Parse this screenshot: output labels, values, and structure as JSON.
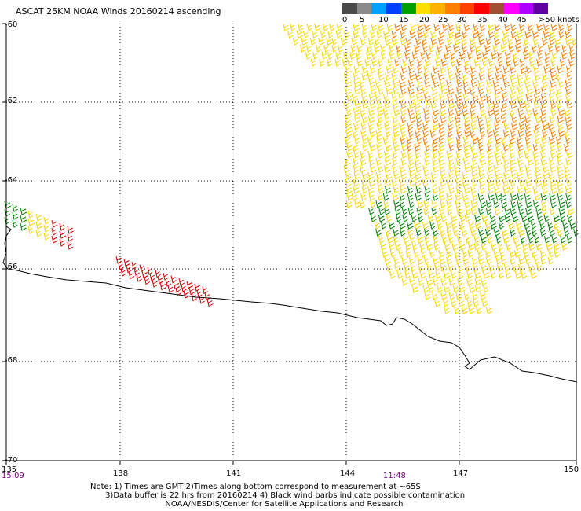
{
  "title": "ASCAT 25KM NOAA Winds 20160214 ascending",
  "scale": {
    "colors": [
      "#4a4a4a",
      "#8a8a8a",
      "#00a0ff",
      "#0040ff",
      "#00a000",
      "#ffe000",
      "#ffb000",
      "#ff8000",
      "#ff4000",
      "#ff0000",
      "#a05030",
      "#ff00ff",
      "#b000ff",
      "#6000a0"
    ],
    "labels": [
      "0",
      "5",
      "10",
      "15",
      "20",
      "25",
      "30",
      "35",
      "40",
      "45",
      ">50 knots"
    ]
  },
  "axes": {
    "lat_labels": [
      "-60",
      "-62",
      "-64",
      "-66",
      "-68",
      "-70"
    ],
    "lon_labels": [
      "135",
      "138",
      "141",
      "144",
      "147",
      "150"
    ]
  },
  "times": [
    "15:09",
    "11:48"
  ],
  "notes": [
    "Note: 1) Times are GMT 2)Times along bottom correspond to measurement at ~65S",
    "      3)Data buffer is 22 hrs from 20160214 4) Black wind barbs indicate possible contamination",
    "                              NOAA/NESDIS/Center for Satellite Applications and Research"
  ],
  "barb_colors": {
    "yellow": "#f5d400",
    "orange": "#f08000",
    "green": "#008000",
    "red": "#d00000"
  }
}
